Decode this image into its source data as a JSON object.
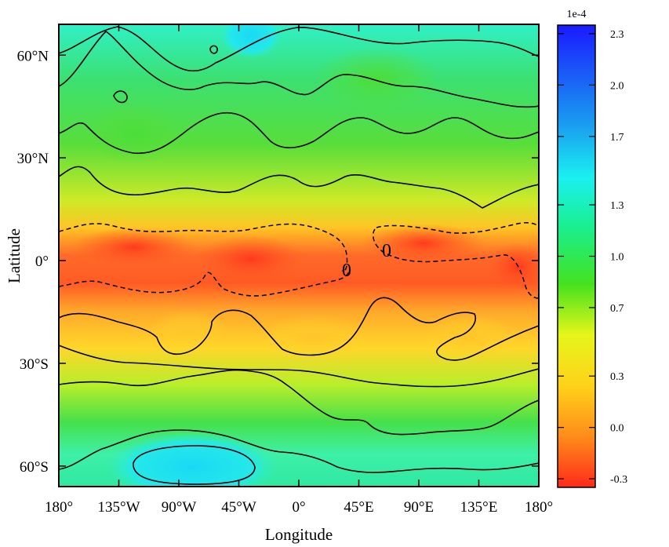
{
  "chart_data": {
    "type": "heatmap",
    "xlabel": "Longitude",
    "ylabel": "Latitude",
    "xlim": [
      -180,
      180
    ],
    "ylim": [
      -66,
      69
    ],
    "x_ticks": [
      {
        "value": -180,
        "label": "180°"
      },
      {
        "value": -135,
        "label": "135°W"
      },
      {
        "value": -90,
        "label": "90°W"
      },
      {
        "value": -45,
        "label": "45°W"
      },
      {
        "value": 0,
        "label": "0°"
      },
      {
        "value": 45,
        "label": "45°E"
      },
      {
        "value": 90,
        "label": "90°E"
      },
      {
        "value": 135,
        "label": "135°E"
      },
      {
        "value": 180,
        "label": "180°"
      }
    ],
    "y_ticks": [
      {
        "value": 60,
        "label": "60°N"
      },
      {
        "value": 30,
        "label": "30°N"
      },
      {
        "value": 0,
        "label": "0°"
      },
      {
        "value": -30,
        "label": "30°S"
      },
      {
        "value": -60,
        "label": "60°S"
      }
    ],
    "colorbar": {
      "exponent_label": "1e-4",
      "range": [
        -0.35,
        2.35
      ],
      "ticks": [
        -0.3,
        0.0,
        0.3,
        0.7,
        1.0,
        1.3,
        1.7,
        2.0,
        2.3
      ],
      "tick_labels": [
        "-0.3",
        "0.0",
        "0.3",
        "0.7",
        "1.0",
        "1.3",
        "1.7",
        "2.0",
        "2.3"
      ],
      "colors": [
        "#ff2a1a",
        "#ff8c1a",
        "#ffd21a",
        "#e6f51a",
        "#1ed21e",
        "#1aef8c",
        "#1af0f0",
        "#1a8cf0",
        "#1a1aff"
      ]
    },
    "latitudinal_profile": {
      "description_lat": [
        69,
        60,
        45,
        30,
        15,
        5,
        0,
        -5,
        -15,
        -30,
        -45,
        -60,
        -66
      ],
      "values": [
        1.4,
        1.1,
        0.95,
        0.8,
        0.45,
        0.05,
        0.0,
        0.15,
        0.35,
        0.6,
        0.9,
        1.45,
        1.35
      ]
    },
    "contour_labels": [
      {
        "lon": 46,
        "lat": -3,
        "text": "0"
      },
      {
        "lon": 66,
        "lat": 2,
        "text": "0"
      }
    ]
  }
}
